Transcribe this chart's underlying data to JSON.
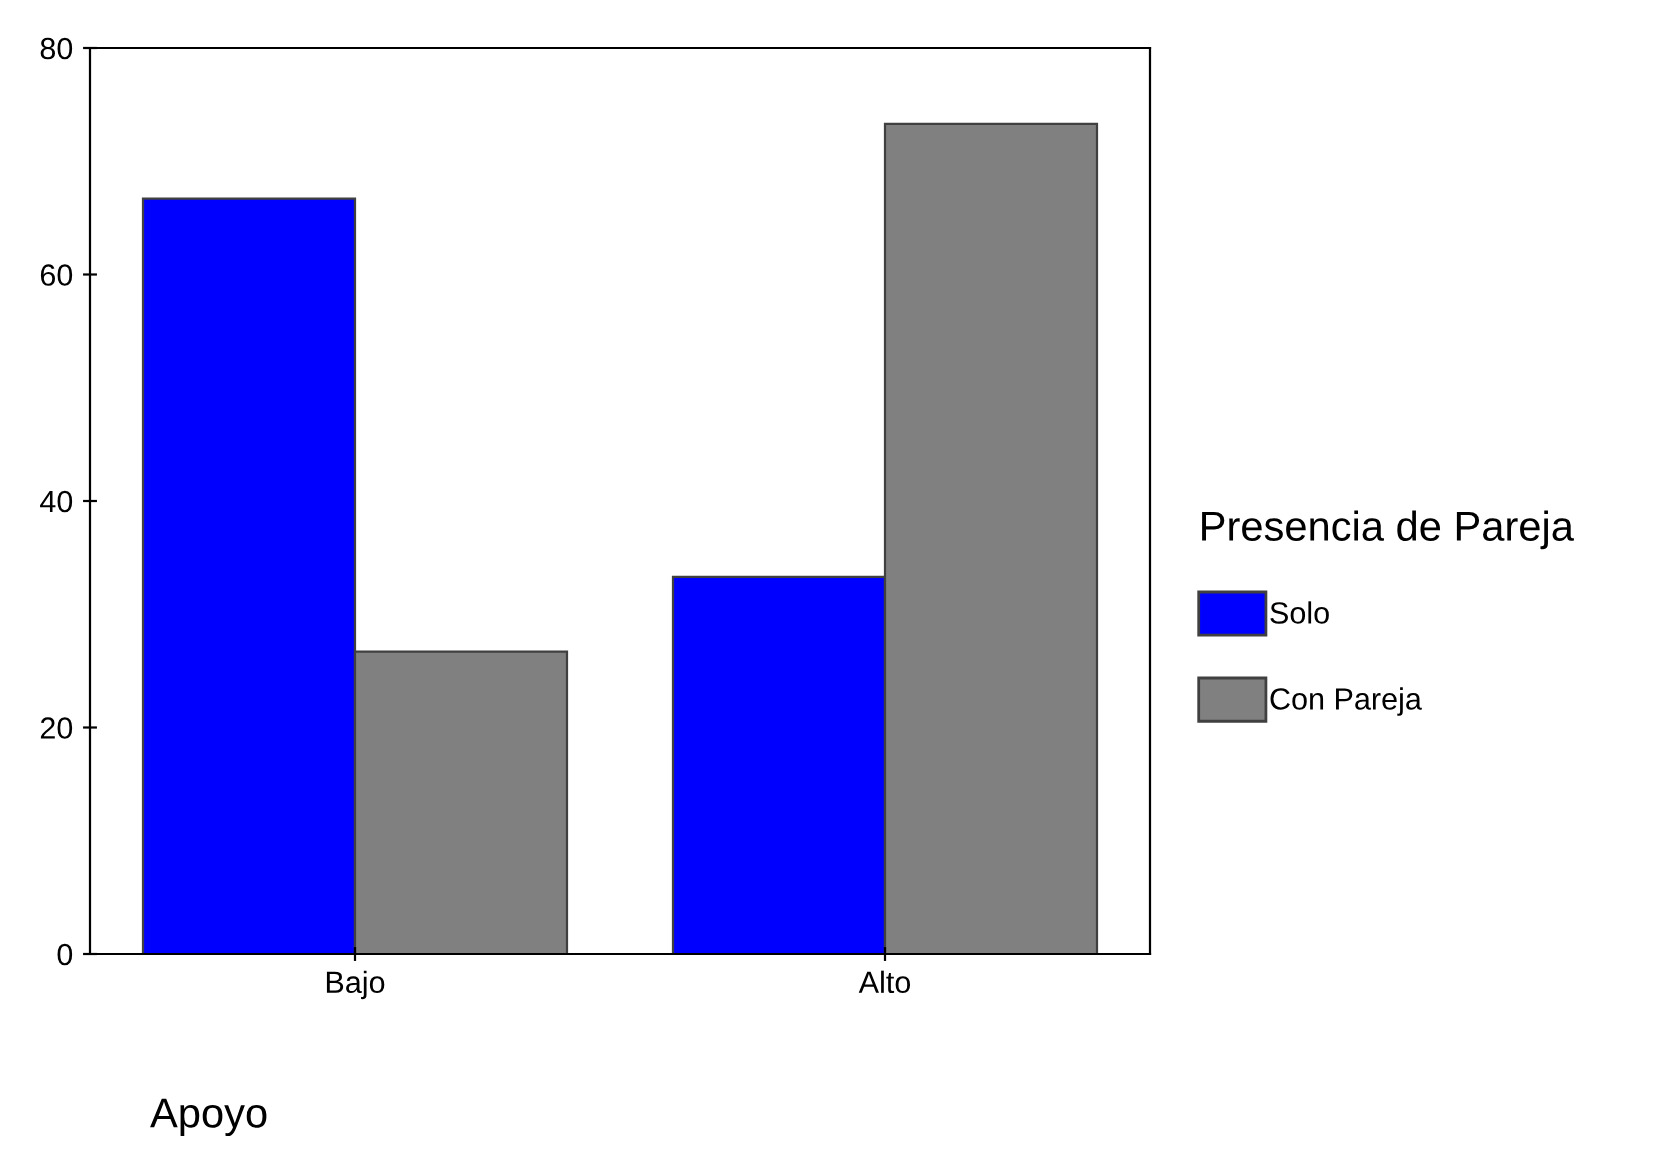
{
  "chart_data": {
    "type": "bar",
    "categories": [
      "Bajo",
      "Alto"
    ],
    "xlabel": "Apoyo",
    "legend_title": "Presencia de Pareja",
    "series": [
      {
        "name": "Solo",
        "color": "#0000ff",
        "values": [
          66.7,
          33.3
        ]
      },
      {
        "name": "Con Pareja",
        "color": "#808080",
        "values": [
          26.7,
          73.3
        ]
      }
    ],
    "ylim": [
      0,
      80
    ],
    "yticks": [
      0,
      20,
      40,
      60,
      80
    ],
    "grid": false,
    "legend": "right"
  }
}
